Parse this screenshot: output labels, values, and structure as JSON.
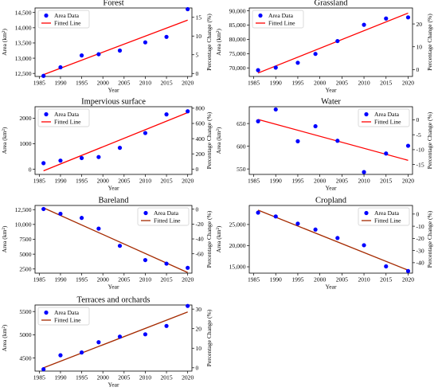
{
  "chart_data": [
    {
      "type": "scatter",
      "title": "Forest",
      "xlabel": "Year",
      "ylabel": "Area (km²)",
      "ylabel_right": "Percentage Change (%)",
      "xlim": [
        1984,
        2021
      ],
      "ylim": [
        12400,
        14650
      ],
      "xticks": [
        1985,
        1990,
        1995,
        2000,
        2005,
        2010,
        2015,
        2020
      ],
      "yticks": [
        12500,
        13000,
        13500,
        14000,
        14500
      ],
      "ytick_labels": [
        "12,500",
        "13,000",
        "13,500",
        "14,000",
        "14,500"
      ],
      "yticks_right": [
        0,
        5,
        10,
        15
      ],
      "ylim_right": [
        -0.8,
        17.5
      ],
      "legend": {
        "placement": "top-left",
        "entries": [
          "Area Data",
          "Fitted Line"
        ]
      },
      "series": [
        {
          "name": "Area Data",
          "color": "#0000ff",
          "x": [
            1986,
            1990,
            1995,
            1999,
            2004,
            2010,
            2015,
            2020
          ],
          "y": [
            12420,
            12700,
            13090,
            13130,
            13250,
            13520,
            13700,
            14610
          ]
        },
        {
          "name": "Fitted Line",
          "color": "#ff0000",
          "x": [
            1986,
            2020
          ],
          "y": [
            12460,
            14250
          ]
        }
      ]
    },
    {
      "type": "scatter",
      "title": "Grassland",
      "xlabel": "Year",
      "ylabel": "Area (km²)",
      "ylabel_right": "Percentage Change (%)",
      "xlim": [
        1984,
        2021
      ],
      "ylim": [
        67000,
        91000
      ],
      "xticks": [
        1985,
        1990,
        1995,
        2000,
        2005,
        2010,
        2015,
        2020
      ],
      "yticks": [
        70000,
        75000,
        80000,
        85000,
        90000
      ],
      "ytick_labels": [
        "70,000",
        "75,000",
        "80,000",
        "85,000",
        "90,000"
      ],
      "yticks_right": [
        0,
        10,
        20
      ],
      "ylim_right": [
        -3,
        27
      ],
      "legend": {
        "placement": "top-left",
        "entries": [
          "Area Data",
          "Fitted Line"
        ]
      },
      "series": [
        {
          "name": "Area Data",
          "color": "#0000ff",
          "x": [
            1986,
            1990,
            1995,
            1999,
            2004,
            2010,
            2015,
            2020
          ],
          "y": [
            69200,
            70100,
            71800,
            74900,
            79400,
            85100,
            87300,
            87700
          ]
        },
        {
          "name": "Fitted Line",
          "color": "#ff0000",
          "x": [
            1986,
            2020
          ],
          "y": [
            68200,
            89200
          ]
        }
      ]
    },
    {
      "type": "scatter",
      "title": "Impervious surface",
      "xlabel": "Year",
      "ylabel": "Area (km²)",
      "ylabel_right": "Percentage Change (%)",
      "xlim": [
        1984,
        2021
      ],
      "ylim": [
        -200,
        2450
      ],
      "xticks": [
        1985,
        1990,
        1995,
        2000,
        2005,
        2010,
        2015,
        2020
      ],
      "yticks": [
        0,
        1000,
        2000
      ],
      "ytick_labels": [
        "0",
        "1000",
        "2000"
      ],
      "yticks_right": [
        0,
        200,
        400,
        600,
        800
      ],
      "ylim_right": [
        -70,
        820
      ],
      "legend": {
        "placement": "top-left",
        "entries": [
          "Area Data",
          "Fitted Line"
        ]
      },
      "series": [
        {
          "name": "Area Data",
          "color": "#0000ff",
          "x": [
            1986,
            1990,
            1995,
            1999,
            2004,
            2010,
            2015,
            2020
          ],
          "y": [
            240,
            340,
            440,
            480,
            840,
            1420,
            2150,
            2270
          ]
        },
        {
          "name": "Fitted Line",
          "color": "#ff0000",
          "x": [
            1986,
            2020
          ],
          "y": [
            -60,
            2220
          ]
        }
      ]
    },
    {
      "type": "scatter",
      "title": "Water",
      "xlabel": "Year",
      "ylabel": "Area (km²)",
      "ylabel_right": "Percentage Change (%)",
      "xlim": [
        1984,
        2021
      ],
      "ylim": [
        538,
        687
      ],
      "xticks": [
        1985,
        1990,
        1995,
        2000,
        2005,
        2010,
        2015,
        2020
      ],
      "yticks": [
        550,
        600,
        650
      ],
      "ytick_labels": [
        "550",
        "600",
        "650"
      ],
      "yticks_right": [
        0,
        -5,
        -10,
        -15
      ],
      "ylim_right": [
        -18.3,
        4.4
      ],
      "legend": {
        "placement": "top-right",
        "entries": [
          "Area Data",
          "Fitted Line"
        ]
      },
      "series": [
        {
          "name": "Area Data",
          "color": "#0000ff",
          "x": [
            1986,
            1990,
            1995,
            1999,
            2004,
            2010,
            2015,
            2020
          ],
          "y": [
            655,
            681,
            611,
            644,
            612,
            543,
            584,
            601
          ]
        },
        {
          "name": "Fitted Line",
          "color": "#ff0000",
          "x": [
            1986,
            2020
          ],
          "y": [
            659,
            569
          ]
        }
      ]
    },
    {
      "type": "scatter",
      "title": "Bareland",
      "xlabel": "Year",
      "ylabel": "Area (km²)",
      "ylabel_right": "Percentage Change (%)",
      "xlim": [
        1984,
        2021
      ],
      "ylim": [
        1800,
        13200
      ],
      "xticks": [
        1985,
        1990,
        1995,
        2000,
        2005,
        2010,
        2015,
        2020
      ],
      "yticks": [
        2500,
        5000,
        7500,
        10000,
        12500
      ],
      "ytick_labels": [
        "2500",
        "5000",
        "7500",
        "10,000",
        "12,500"
      ],
      "yticks_right": [
        0,
        -20,
        -40,
        -60
      ],
      "ylim_right": [
        -86,
        5
      ],
      "legend": {
        "placement": "top-right",
        "entries": [
          "Area Data",
          "Fitted Line"
        ]
      },
      "series": [
        {
          "name": "Area Data",
          "color": "#0000ff",
          "x": [
            1986,
            1990,
            1995,
            1999,
            2004,
            2010,
            2015,
            2020
          ],
          "y": [
            12600,
            11800,
            11100,
            9300,
            6400,
            4000,
            3400,
            2700
          ]
        },
        {
          "name": "Fitted Line",
          "color": "#a52a00",
          "x": [
            1986,
            2020
          ],
          "y": [
            12800,
            1900
          ]
        }
      ]
    },
    {
      "type": "scatter",
      "title": "Cropland",
      "xlabel": "Year",
      "ylabel": "Area (km²)",
      "ylabel_right": "Percentage Change (%)",
      "xlim": [
        1984,
        2021
      ],
      "ylim": [
        13500,
        29500
      ],
      "xticks": [
        1985,
        1990,
        1995,
        2000,
        2005,
        2010,
        2015,
        2020
      ],
      "yticks": [
        15000,
        20000,
        25000
      ],
      "ytick_labels": [
        "15,000",
        "20,000",
        "25,000"
      ],
      "yticks_right": [
        0,
        -10,
        -20,
        -30,
        -40
      ],
      "ylim_right": [
        -48.6,
        7.1
      ],
      "legend": {
        "placement": "top-right",
        "entries": [
          "Area Data",
          "Fitted Line"
        ]
      },
      "series": [
        {
          "name": "Area Data",
          "color": "#0000ff",
          "x": [
            1986,
            1990,
            1995,
            1999,
            2004,
            2010,
            2015,
            2020
          ],
          "y": [
            27800,
            26900,
            25200,
            23800,
            21800,
            20100,
            15100,
            14000
          ]
        },
        {
          "name": "Fitted Line",
          "color": "#a52a00",
          "x": [
            1986,
            2020
          ],
          "y": [
            28400,
            14200
          ]
        }
      ]
    },
    {
      "type": "scatter",
      "title": "Terraces and orchards",
      "xlabel": "Year",
      "ylabel": "Area (km²)",
      "ylabel_right": "Percentage Change (%)",
      "xlim": [
        1984,
        2021
      ],
      "ylim": [
        4220,
        5640
      ],
      "xticks": [
        1985,
        1990,
        1995,
        2000,
        2005,
        2010,
        2015,
        2020
      ],
      "yticks": [
        4500,
        5000,
        5500
      ],
      "ytick_labels": [
        "4500",
        "5000",
        "5500"
      ],
      "yticks_right": [
        0,
        10,
        20,
        30
      ],
      "ylim_right": [
        -1.7,
        32.1
      ],
      "legend": {
        "placement": "top-left",
        "entries": [
          "Area Data",
          "Fitted Line"
        ]
      },
      "series": [
        {
          "name": "Area Data",
          "color": "#0000ff",
          "x": [
            1986,
            1990,
            1995,
            1999,
            2004,
            2010,
            2015,
            2020
          ],
          "y": [
            4260,
            4560,
            4620,
            4840,
            4960,
            5010,
            5190,
            5620
          ]
        },
        {
          "name": "Fitted Line",
          "color": "#a52a00",
          "x": [
            1986,
            2020
          ],
          "y": [
            4290,
            5490
          ]
        }
      ]
    }
  ]
}
